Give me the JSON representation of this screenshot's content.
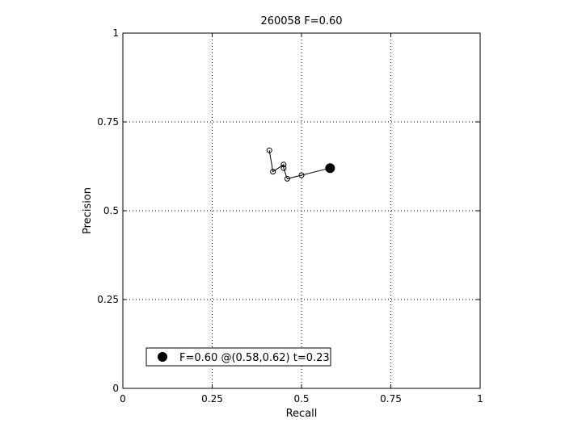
{
  "chart_data": {
    "type": "scatter",
    "title": "260058 F=0.60",
    "xlabel": "Recall",
    "ylabel": "Precision",
    "xlim": [
      0,
      1
    ],
    "ylim": [
      0,
      1
    ],
    "xticks": [
      "0",
      "0.25",
      "0.5",
      "0.75",
      "1"
    ],
    "yticks": [
      "0",
      "0.25",
      "0.5",
      "0.75",
      "1"
    ],
    "grid": true,
    "legend_placement": "lower-left",
    "legend": {
      "label": "F=0.60 @(0.58,0.62) t=0.23"
    },
    "curve": {
      "x": [
        0.41,
        0.42,
        0.45,
        0.45,
        0.46,
        0.5,
        0.58
      ],
      "y": [
        0.67,
        0.61,
        0.63,
        0.62,
        0.59,
        0.6,
        0.62
      ]
    },
    "best_point": {
      "x": 0.58,
      "y": 0.62
    },
    "colors": {
      "line": "#000000",
      "grid": "#000000",
      "background": "#ffffff"
    }
  }
}
